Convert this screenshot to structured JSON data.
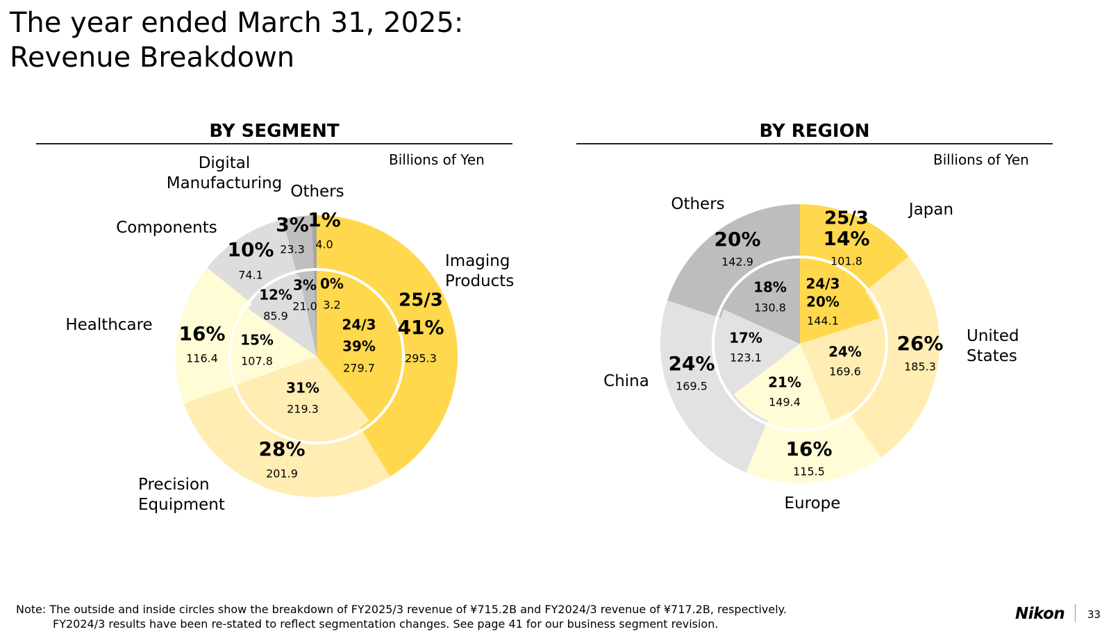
{
  "title": {
    "line1": "The year ended March 31, 2025:",
    "line2": "Revenue Breakdown"
  },
  "segment": {
    "heading": "BY SEGMENT",
    "unit": "Billions of Yen",
    "categories": {
      "imaging": "Imaging\nProducts",
      "precision": "Precision\nEquipment",
      "healthcare": "Healthcare",
      "components": "Components",
      "digital": "Digital\nManufacturing",
      "others": "Others"
    }
  },
  "region": {
    "heading": "BY REGION",
    "unit": "Billions of Yen",
    "categories": {
      "japan": "Japan",
      "us": "United\nStates",
      "europe": "Europe",
      "china": "China",
      "others": "Others"
    }
  },
  "chart_data": [
    {
      "type": "pie",
      "name": "BY SEGMENT",
      "unit": "Billions of Yen",
      "order": [
        "imaging",
        "precision",
        "healthcare",
        "components",
        "digital",
        "others"
      ],
      "colors": {
        "imaging": "#FFD84D",
        "precision": "#FFEDB4",
        "healthcare": "#FFFCD6",
        "components": "#DDDDDD",
        "digital": "#BFBFBF",
        "others": "#A6A6A6"
      },
      "outer": {
        "period": "25/3",
        "values": {
          "imaging": 295.3,
          "precision": 201.9,
          "healthcare": 116.4,
          "components": 74.1,
          "digital": 23.3,
          "others": 4.0
        },
        "percents": {
          "imaging": "41%",
          "precision": "28%",
          "healthcare": "16%",
          "components": "10%",
          "digital": "3%",
          "others": "1%"
        }
      },
      "inner": {
        "period": "24/3",
        "values": {
          "imaging": 279.7,
          "precision": 219.3,
          "healthcare": 107.8,
          "components": 85.9,
          "digital": 21.0,
          "others": 3.2
        },
        "percents": {
          "imaging": "39%",
          "precision": "31%",
          "healthcare": "15%",
          "components": "12%",
          "digital": "3%",
          "others": "0%"
        }
      }
    },
    {
      "type": "pie",
      "name": "BY REGION",
      "unit": "Billions of Yen",
      "order": [
        "japan",
        "us",
        "europe",
        "china",
        "others"
      ],
      "colors": {
        "japan": "#FFD84D",
        "us": "#FFEDB4",
        "europe": "#FFFCD6",
        "china": "#E2E2E2",
        "others": "#BDBDBD"
      },
      "outer": {
        "period": "25/3",
        "values": {
          "japan": 101.8,
          "us": 185.3,
          "europe": 115.5,
          "china": 169.5,
          "others": 142.9
        },
        "percents": {
          "japan": "14%",
          "us": "26%",
          "europe": "16%",
          "china": "24%",
          "others": "20%"
        }
      },
      "inner": {
        "period": "24/3",
        "values": {
          "japan": 144.1,
          "us": 169.6,
          "europe": 149.4,
          "china": 123.1,
          "others": 130.8
        },
        "percents": {
          "japan": "20%",
          "us": "24%",
          "europe": "21%",
          "china": "17%",
          "others": "18%"
        }
      }
    }
  ],
  "note": {
    "line1": "Note: The outside and inside circles show the breakdown of FY2025/3 revenue of ¥715.2B and FY2024/3 revenue of ¥717.2B, respectively.",
    "line2": "FY2024/3 results have been re-stated to reflect segmentation changes. See page 41 for our business segment revision."
  },
  "footer": {
    "logo": "Nikon",
    "page": "33"
  }
}
